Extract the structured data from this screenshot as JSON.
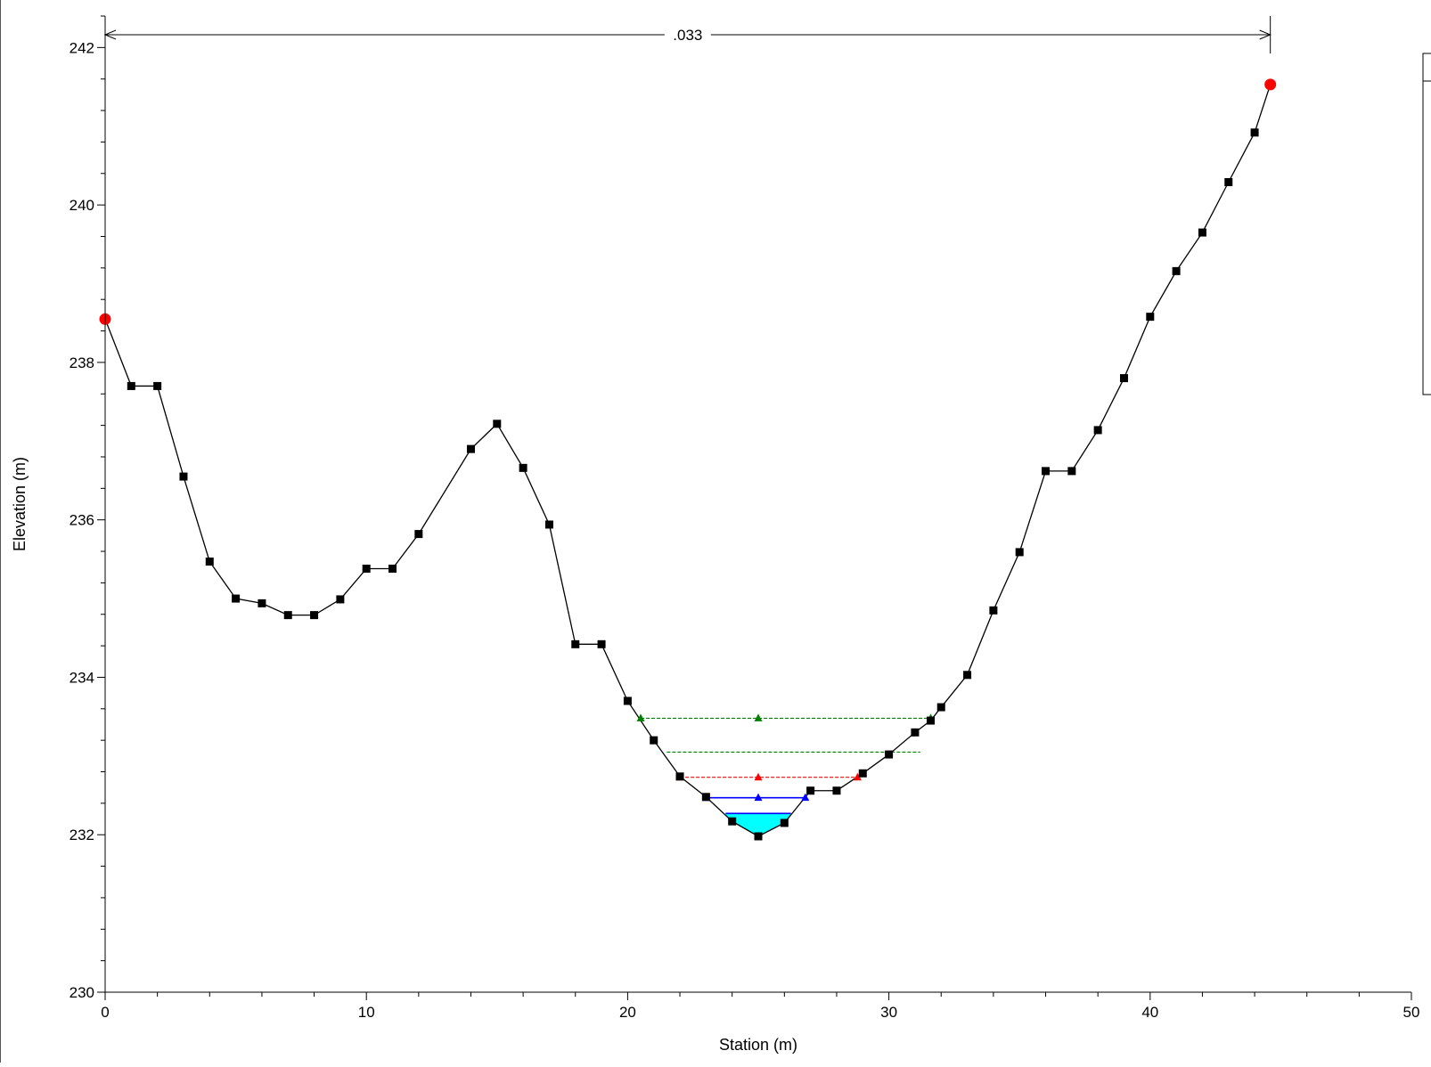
{
  "chart_data": {
    "type": "line",
    "title": "",
    "xlabel": "Station (m)",
    "ylabel": "Elevation (m)",
    "xlim": [
      0,
      50
    ],
    "ylim": [
      230,
      242.4
    ],
    "x_ticks": [
      0,
      10,
      20,
      30,
      40,
      50
    ],
    "y_ticks": [
      230,
      232,
      234,
      236,
      238,
      240,
      242
    ],
    "x_tick_labels": [
      "0",
      "10",
      "20",
      "30",
      "40",
      "50"
    ],
    "y_tick_labels": [
      "230",
      "232",
      "234",
      "236",
      "238",
      "240",
      "242"
    ],
    "grid": false,
    "legend": "right (partially visible, no text)",
    "manning_n": {
      "label": ".033",
      "from_station": 0,
      "to_station": 44.6
    },
    "ground": {
      "color": "#000000",
      "x": [
        0,
        1,
        2,
        3,
        4,
        5,
        6,
        7,
        8,
        9,
        10,
        11,
        12,
        14,
        15,
        16,
        17,
        18,
        19,
        20,
        21,
        22,
        23,
        24,
        25,
        26,
        27,
        28,
        29,
        30,
        31,
        31.6,
        32,
        33,
        34,
        35,
        36,
        37,
        38,
        39,
        40,
        41,
        42,
        43,
        44,
        44.6
      ],
      "y": [
        238.55,
        237.7,
        237.7,
        236.55,
        235.47,
        235.0,
        234.94,
        234.79,
        234.79,
        234.99,
        235.38,
        235.38,
        235.82,
        236.9,
        237.22,
        236.66,
        235.94,
        234.42,
        234.42,
        233.7,
        233.2,
        232.74,
        232.48,
        232.17,
        231.98,
        232.15,
        232.56,
        232.56,
        232.78,
        233.02,
        233.3,
        233.45,
        233.62,
        234.03,
        234.85,
        235.59,
        236.62,
        236.62,
        237.14,
        237.8,
        238.58,
        239.16,
        239.65,
        240.29,
        240.92,
        241.53
      ]
    },
    "bank_stations": {
      "color": "#ff0000",
      "x": [
        0,
        44.6
      ],
      "y": [
        238.55,
        241.53
      ]
    },
    "water_surfaces": [
      {
        "color": "#008000",
        "style": "dashed",
        "x": [
          20.5,
          31.6
        ],
        "y": 233.48,
        "markers": [
          20.5,
          25,
          31.6
        ]
      },
      {
        "color": "#008000",
        "style": "dashed",
        "x": [
          21.5,
          31.2
        ],
        "y": 233.05,
        "markers": []
      },
      {
        "color": "#ff0000",
        "style": "dashed",
        "x": [
          22,
          28.8
        ],
        "y": 232.73,
        "markers": [
          22,
          25,
          28.8
        ]
      },
      {
        "color": "#0000ff",
        "style": "solid",
        "x": [
          23,
          26.8
        ],
        "y": 232.47,
        "markers": [
          23,
          25,
          26.8
        ]
      },
      {
        "color": "#0000ff",
        "style": "solid",
        "x": [
          23.75,
          26.25
        ],
        "y": 232.27,
        "markers": [],
        "fill": "#00ffff"
      }
    ]
  }
}
